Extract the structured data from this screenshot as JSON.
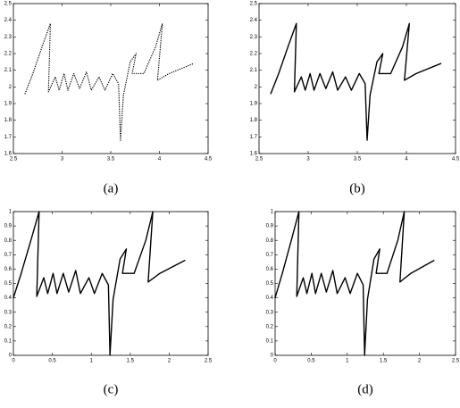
{
  "chart_data": [
    {
      "type": "line",
      "caption": "(a)",
      "line_style": "dotted",
      "color": "#000000",
      "x": [
        2.62,
        2.7,
        2.8,
        2.88,
        2.86,
        2.93,
        2.97,
        3.02,
        3.06,
        3.12,
        3.18,
        3.25,
        3.3,
        3.38,
        3.44,
        3.52,
        3.58,
        3.6,
        3.63,
        3.7,
        3.76,
        3.72,
        3.84,
        3.96,
        4.03,
        3.98,
        4.1,
        4.35
      ],
      "values": [
        1.96,
        2.08,
        2.25,
        2.38,
        1.97,
        2.06,
        1.98,
        2.08,
        1.98,
        2.08,
        1.99,
        2.09,
        1.98,
        2.06,
        1.98,
        2.08,
        2.02,
        1.68,
        1.95,
        2.15,
        2.2,
        2.08,
        2.08,
        2.24,
        2.38,
        2.04,
        2.08,
        2.14
      ],
      "xlim": [
        2.5,
        4.5
      ],
      "ylim": [
        1.6,
        2.5
      ],
      "xticks": [
        2.5,
        3,
        3.5,
        4,
        4.5
      ],
      "yticks": [
        1.6,
        1.7,
        1.8,
        1.9,
        2,
        2.1,
        2.2,
        2.3,
        2.4,
        2.5
      ]
    },
    {
      "type": "line",
      "caption": "(b)",
      "line_style": "solid",
      "color": "#000000",
      "x": [
        2.62,
        2.7,
        2.8,
        2.88,
        2.86,
        2.93,
        2.97,
        3.02,
        3.06,
        3.12,
        3.18,
        3.25,
        3.3,
        3.38,
        3.44,
        3.52,
        3.58,
        3.6,
        3.63,
        3.7,
        3.76,
        3.72,
        3.84,
        3.96,
        4.03,
        3.98,
        4.1,
        4.35
      ],
      "values": [
        1.96,
        2.08,
        2.25,
        2.38,
        1.97,
        2.06,
        1.98,
        2.08,
        1.98,
        2.08,
        1.99,
        2.09,
        1.98,
        2.06,
        1.98,
        2.08,
        2.02,
        1.68,
        1.95,
        2.15,
        2.2,
        2.08,
        2.08,
        2.24,
        2.38,
        2.04,
        2.08,
        2.14
      ],
      "xlim": [
        2.5,
        4.5
      ],
      "ylim": [
        1.6,
        2.5
      ],
      "xticks": [
        2.5,
        3,
        3.5,
        4,
        4.5
      ],
      "yticks": [
        1.6,
        1.7,
        1.8,
        1.9,
        2,
        2.1,
        2.2,
        2.3,
        2.4,
        2.5
      ]
    },
    {
      "type": "line",
      "caption": "(c)",
      "line_style": "solid",
      "color": "#000000",
      "x": [
        0,
        0.1,
        0.23,
        0.33,
        0.3,
        0.39,
        0.44,
        0.51,
        0.56,
        0.64,
        0.71,
        0.8,
        0.86,
        0.97,
        1.04,
        1.14,
        1.22,
        1.24,
        1.28,
        1.37,
        1.45,
        1.4,
        1.55,
        1.7,
        1.79,
        1.73,
        1.88,
        2.2
      ],
      "values": [
        0.4,
        0.57,
        0.81,
        1.0,
        0.41,
        0.54,
        0.43,
        0.57,
        0.43,
        0.57,
        0.44,
        0.59,
        0.43,
        0.54,
        0.43,
        0.57,
        0.49,
        0,
        0.39,
        0.67,
        0.74,
        0.57,
        0.57,
        0.8,
        1.0,
        0.51,
        0.57,
        0.66
      ],
      "xlim": [
        0,
        2.5
      ],
      "ylim": [
        0,
        1
      ],
      "xticks": [
        0,
        0.5,
        1,
        1.5,
        2,
        2.5
      ],
      "yticks": [
        0,
        0.1,
        0.2,
        0.3,
        0.4,
        0.5,
        0.6,
        0.7,
        0.8,
        0.9,
        1
      ]
    },
    {
      "type": "line",
      "caption": "(d)",
      "line_style": "solid",
      "color": "#000000",
      "x": [
        0,
        0.1,
        0.23,
        0.33,
        0.3,
        0.39,
        0.44,
        0.51,
        0.56,
        0.64,
        0.71,
        0.8,
        0.86,
        0.97,
        1.04,
        1.14,
        1.22,
        1.24,
        1.28,
        1.37,
        1.45,
        1.4,
        1.55,
        1.7,
        1.79,
        1.73,
        1.88,
        2.2
      ],
      "values": [
        0.4,
        0.57,
        0.81,
        1.0,
        0.41,
        0.54,
        0.43,
        0.57,
        0.43,
        0.57,
        0.44,
        0.59,
        0.43,
        0.54,
        0.43,
        0.57,
        0.49,
        0,
        0.39,
        0.67,
        0.74,
        0.57,
        0.57,
        0.8,
        1.0,
        0.51,
        0.57,
        0.66
      ],
      "xlim": [
        0,
        2.5
      ],
      "ylim": [
        0,
        1
      ],
      "xticks": [
        0,
        0.5,
        1,
        1.5,
        2,
        2.5
      ],
      "yticks": [
        0,
        0.1,
        0.2,
        0.3,
        0.4,
        0.5,
        0.6,
        0.7,
        0.8,
        0.9,
        1
      ]
    }
  ]
}
